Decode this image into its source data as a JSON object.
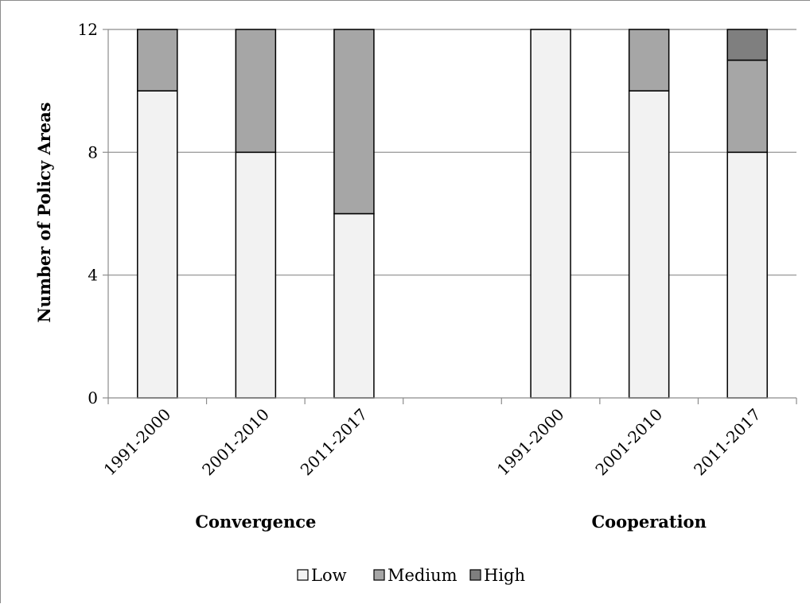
{
  "chart_data": {
    "type": "bar",
    "stacked": true,
    "ylabel": "Number of Policy Areas",
    "ylim": [
      0,
      12
    ],
    "yticks": [
      "0",
      "4",
      "8",
      "12"
    ],
    "grid": true,
    "legend_position": "bottom",
    "groups": [
      {
        "label": "Convergence",
        "categories": [
          "1991-2000",
          "2001-2010",
          "2011-2017"
        ]
      },
      {
        "label": "Cooperation",
        "categories": [
          "1991-2000",
          "2001-2010",
          "2011-2017"
        ]
      }
    ],
    "series": [
      {
        "name": "Low",
        "color": "#f2f2f2",
        "values": [
          10,
          8,
          6,
          12,
          10,
          8
        ]
      },
      {
        "name": "Medium",
        "color": "#a6a6a6",
        "values": [
          2,
          4,
          6,
          0,
          2,
          3
        ]
      },
      {
        "name": "High",
        "color": "#7f7f7f",
        "values": [
          0,
          0,
          0,
          0,
          0,
          1
        ]
      }
    ]
  }
}
